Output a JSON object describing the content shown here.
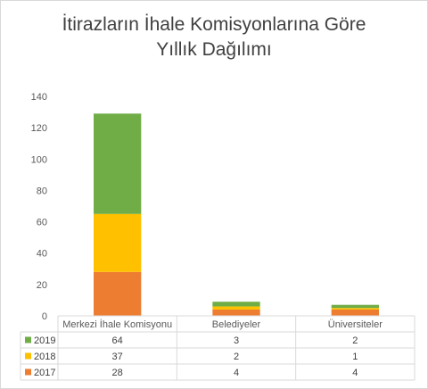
{
  "chart_data": {
    "type": "bar",
    "stacked": true,
    "title_lines": [
      "İtirazların İhale Komisyonlarına Göre",
      "Yıllık Dağılımı"
    ],
    "categories": [
      "Merkezi İhale Komisyonu",
      "Belediyeler",
      "Üniversiteler"
    ],
    "series": [
      {
        "name": "2017",
        "values": [
          28,
          4,
          4
        ],
        "color": "#ed7d31"
      },
      {
        "name": "2018",
        "values": [
          37,
          2,
          1
        ],
        "color": "#ffc000"
      },
      {
        "name": "2019",
        "values": [
          64,
          3,
          2
        ],
        "color": "#70ad47"
      }
    ],
    "table_order": [
      "2019",
      "2018",
      "2017"
    ],
    "ylim": [
      0,
      140
    ],
    "yticks": [
      0,
      20,
      40,
      60,
      80,
      100,
      120,
      140
    ],
    "grid": false,
    "legend": "data-table"
  }
}
